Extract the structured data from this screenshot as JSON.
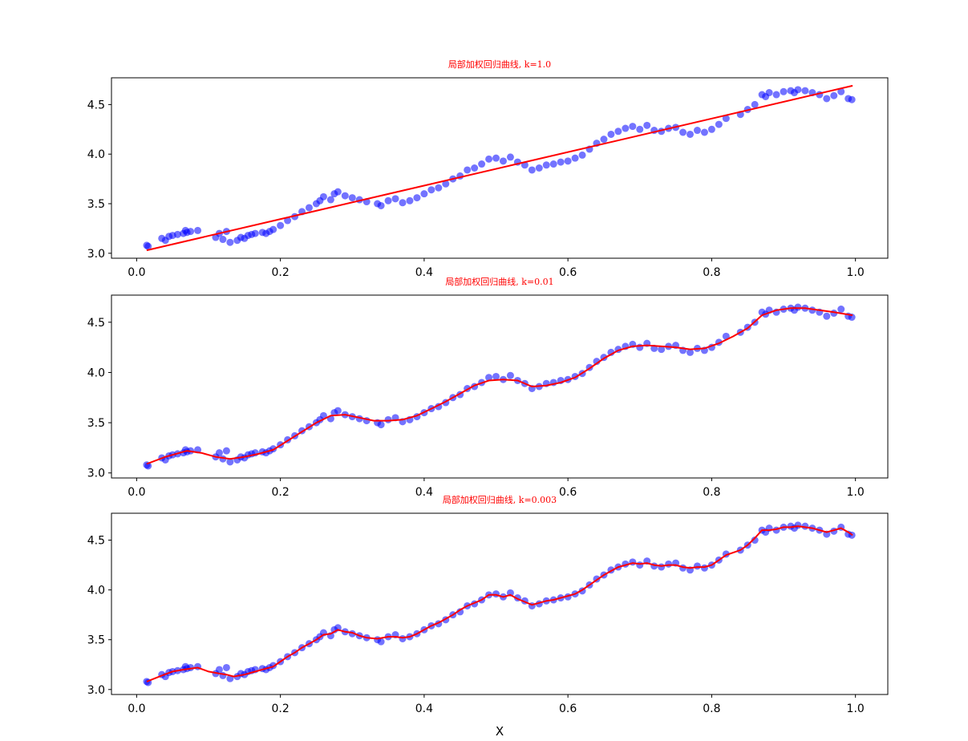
{
  "chart_data": [
    {
      "type": "scatter",
      "title": "局部加权回归曲线, k=1.0",
      "xlabel": "",
      "ylabel": "",
      "xlim": [
        -0.035,
        1.045
      ],
      "ylim": [
        2.95,
        4.77
      ],
      "xticks": [
        "0.0",
        "0.2",
        "0.4",
        "0.6",
        "0.8",
        "1.0"
      ],
      "yticks": [
        "3.0",
        "3.5",
        "4.0",
        "4.5"
      ],
      "grid": false,
      "series": [
        {
          "kind": "scatter",
          "color": "#0000ff",
          "x": [
            0.014,
            0.016,
            0.035,
            0.04,
            0.045,
            0.05,
            0.057,
            0.065,
            0.068,
            0.07,
            0.075,
            0.085,
            0.11,
            0.115,
            0.12,
            0.125,
            0.13,
            0.14,
            0.145,
            0.15,
            0.155,
            0.16,
            0.165,
            0.175,
            0.18,
            0.185,
            0.19,
            0.2,
            0.21,
            0.22,
            0.23,
            0.24,
            0.25,
            0.255,
            0.26,
            0.27,
            0.275,
            0.28,
            0.29,
            0.3,
            0.31,
            0.32,
            0.335,
            0.34,
            0.35,
            0.36,
            0.37,
            0.38,
            0.39,
            0.4,
            0.41,
            0.42,
            0.43,
            0.44,
            0.45,
            0.46,
            0.47,
            0.48,
            0.49,
            0.5,
            0.51,
            0.52,
            0.53,
            0.54,
            0.55,
            0.56,
            0.57,
            0.58,
            0.59,
            0.6,
            0.61,
            0.62,
            0.63,
            0.64,
            0.65,
            0.66,
            0.67,
            0.68,
            0.69,
            0.7,
            0.71,
            0.72,
            0.73,
            0.74,
            0.75,
            0.76,
            0.77,
            0.78,
            0.79,
            0.8,
            0.81,
            0.82,
            0.84,
            0.85,
            0.86,
            0.87,
            0.875,
            0.88,
            0.89,
            0.9,
            0.91,
            0.915,
            0.92,
            0.93,
            0.94,
            0.95,
            0.96,
            0.97,
            0.98,
            0.99,
            0.995
          ],
          "y": [
            3.08,
            3.07,
            3.15,
            3.13,
            3.17,
            3.18,
            3.19,
            3.2,
            3.23,
            3.21,
            3.22,
            3.23,
            3.16,
            3.2,
            3.14,
            3.22,
            3.11,
            3.13,
            3.16,
            3.15,
            3.18,
            3.19,
            3.2,
            3.21,
            3.2,
            3.22,
            3.24,
            3.28,
            3.33,
            3.37,
            3.42,
            3.46,
            3.5,
            3.53,
            3.57,
            3.54,
            3.6,
            3.62,
            3.58,
            3.56,
            3.54,
            3.52,
            3.5,
            3.48,
            3.53,
            3.55,
            3.51,
            3.53,
            3.56,
            3.6,
            3.64,
            3.66,
            3.7,
            3.75,
            3.78,
            3.84,
            3.86,
            3.9,
            3.95,
            3.96,
            3.93,
            3.97,
            3.92,
            3.89,
            3.84,
            3.86,
            3.89,
            3.9,
            3.92,
            3.93,
            3.96,
            3.99,
            4.05,
            4.11,
            4.15,
            4.2,
            4.23,
            4.26,
            4.28,
            4.25,
            4.29,
            4.24,
            4.23,
            4.26,
            4.27,
            4.22,
            4.2,
            4.24,
            4.22,
            4.25,
            4.3,
            4.36,
            4.4,
            4.45,
            4.5,
            4.6,
            4.58,
            4.62,
            4.6,
            4.63,
            4.64,
            4.62,
            4.65,
            4.64,
            4.62,
            4.6,
            4.56,
            4.59,
            4.63,
            4.56,
            4.55
          ]
        },
        {
          "kind": "line",
          "color": "#ff0000",
          "x": [
            0.014,
            0.996
          ],
          "y": [
            3.03,
            4.69
          ]
        }
      ]
    },
    {
      "type": "scatter",
      "title": "局部加权回归曲线, k=0.01",
      "xlabel": "",
      "ylabel": "",
      "xlim": [
        -0.035,
        1.045
      ],
      "ylim": [
        2.95,
        4.77
      ],
      "xticks": [
        "0.0",
        "0.2",
        "0.4",
        "0.6",
        "0.8",
        "1.0"
      ],
      "yticks": [
        "3.0",
        "3.5",
        "4.0",
        "4.5"
      ],
      "grid": false,
      "series": [
        {
          "kind": "scatter",
          "color": "#0000ff",
          "x": [
            0.014,
            0.016,
            0.035,
            0.04,
            0.045,
            0.05,
            0.057,
            0.065,
            0.068,
            0.07,
            0.075,
            0.085,
            0.11,
            0.115,
            0.12,
            0.125,
            0.13,
            0.14,
            0.145,
            0.15,
            0.155,
            0.16,
            0.165,
            0.175,
            0.18,
            0.185,
            0.19,
            0.2,
            0.21,
            0.22,
            0.23,
            0.24,
            0.25,
            0.255,
            0.26,
            0.27,
            0.275,
            0.28,
            0.29,
            0.3,
            0.31,
            0.32,
            0.335,
            0.34,
            0.35,
            0.36,
            0.37,
            0.38,
            0.39,
            0.4,
            0.41,
            0.42,
            0.43,
            0.44,
            0.45,
            0.46,
            0.47,
            0.48,
            0.49,
            0.5,
            0.51,
            0.52,
            0.53,
            0.54,
            0.55,
            0.56,
            0.57,
            0.58,
            0.59,
            0.6,
            0.61,
            0.62,
            0.63,
            0.64,
            0.65,
            0.66,
            0.67,
            0.68,
            0.69,
            0.7,
            0.71,
            0.72,
            0.73,
            0.74,
            0.75,
            0.76,
            0.77,
            0.78,
            0.79,
            0.8,
            0.81,
            0.82,
            0.84,
            0.85,
            0.86,
            0.87,
            0.875,
            0.88,
            0.89,
            0.9,
            0.91,
            0.915,
            0.92,
            0.93,
            0.94,
            0.95,
            0.96,
            0.97,
            0.98,
            0.99,
            0.995
          ],
          "y": [
            3.08,
            3.07,
            3.15,
            3.13,
            3.17,
            3.18,
            3.19,
            3.2,
            3.23,
            3.21,
            3.22,
            3.23,
            3.16,
            3.2,
            3.14,
            3.22,
            3.11,
            3.13,
            3.16,
            3.15,
            3.18,
            3.19,
            3.2,
            3.21,
            3.2,
            3.22,
            3.24,
            3.28,
            3.33,
            3.37,
            3.42,
            3.46,
            3.5,
            3.53,
            3.57,
            3.54,
            3.6,
            3.62,
            3.58,
            3.56,
            3.54,
            3.52,
            3.5,
            3.48,
            3.53,
            3.55,
            3.51,
            3.53,
            3.56,
            3.6,
            3.64,
            3.66,
            3.7,
            3.75,
            3.78,
            3.84,
            3.86,
            3.9,
            3.95,
            3.96,
            3.93,
            3.97,
            3.92,
            3.89,
            3.84,
            3.86,
            3.89,
            3.9,
            3.92,
            3.93,
            3.96,
            3.99,
            4.05,
            4.11,
            4.15,
            4.2,
            4.23,
            4.26,
            4.28,
            4.25,
            4.29,
            4.24,
            4.23,
            4.26,
            4.27,
            4.22,
            4.2,
            4.24,
            4.22,
            4.25,
            4.3,
            4.36,
            4.4,
            4.45,
            4.5,
            4.6,
            4.58,
            4.62,
            4.6,
            4.63,
            4.64,
            4.62,
            4.65,
            4.64,
            4.62,
            4.6,
            4.56,
            4.59,
            4.63,
            4.56,
            4.55
          ]
        },
        {
          "kind": "line",
          "color": "#ff0000",
          "x": [
            0.014,
            0.04,
            0.07,
            0.09,
            0.11,
            0.13,
            0.15,
            0.17,
            0.19,
            0.21,
            0.23,
            0.25,
            0.27,
            0.29,
            0.31,
            0.33,
            0.35,
            0.37,
            0.39,
            0.41,
            0.43,
            0.45,
            0.47,
            0.49,
            0.51,
            0.53,
            0.55,
            0.57,
            0.59,
            0.61,
            0.63,
            0.65,
            0.67,
            0.69,
            0.71,
            0.73,
            0.75,
            0.77,
            0.79,
            0.81,
            0.83,
            0.85,
            0.87,
            0.89,
            0.91,
            0.93,
            0.95,
            0.97,
            0.996
          ],
          "y": [
            3.09,
            3.16,
            3.22,
            3.2,
            3.16,
            3.14,
            3.16,
            3.19,
            3.23,
            3.32,
            3.41,
            3.5,
            3.57,
            3.58,
            3.55,
            3.52,
            3.52,
            3.53,
            3.57,
            3.64,
            3.71,
            3.79,
            3.87,
            3.92,
            3.93,
            3.92,
            3.86,
            3.87,
            3.9,
            3.95,
            4.04,
            4.14,
            4.22,
            4.26,
            4.27,
            4.26,
            4.25,
            4.23,
            4.24,
            4.29,
            4.36,
            4.44,
            4.57,
            4.62,
            4.64,
            4.64,
            4.62,
            4.6,
            4.57
          ]
        }
      ]
    },
    {
      "type": "scatter",
      "title": "局部加权回归曲线, k=0.003",
      "xlabel": "X",
      "ylabel": "",
      "xlim": [
        -0.035,
        1.045
      ],
      "ylim": [
        2.95,
        4.77
      ],
      "xticks": [
        "0.0",
        "0.2",
        "0.4",
        "0.6",
        "0.8",
        "1.0"
      ],
      "yticks": [
        "3.0",
        "3.5",
        "4.0",
        "4.5"
      ],
      "grid": false,
      "series": [
        {
          "kind": "scatter",
          "color": "#0000ff",
          "x": [
            0.014,
            0.016,
            0.035,
            0.04,
            0.045,
            0.05,
            0.057,
            0.065,
            0.068,
            0.07,
            0.075,
            0.085,
            0.11,
            0.115,
            0.12,
            0.125,
            0.13,
            0.14,
            0.145,
            0.15,
            0.155,
            0.16,
            0.165,
            0.175,
            0.18,
            0.185,
            0.19,
            0.2,
            0.21,
            0.22,
            0.23,
            0.24,
            0.25,
            0.255,
            0.26,
            0.27,
            0.275,
            0.28,
            0.29,
            0.3,
            0.31,
            0.32,
            0.335,
            0.34,
            0.35,
            0.36,
            0.37,
            0.38,
            0.39,
            0.4,
            0.41,
            0.42,
            0.43,
            0.44,
            0.45,
            0.46,
            0.47,
            0.48,
            0.49,
            0.5,
            0.51,
            0.52,
            0.53,
            0.54,
            0.55,
            0.56,
            0.57,
            0.58,
            0.59,
            0.6,
            0.61,
            0.62,
            0.63,
            0.64,
            0.65,
            0.66,
            0.67,
            0.68,
            0.69,
            0.7,
            0.71,
            0.72,
            0.73,
            0.74,
            0.75,
            0.76,
            0.77,
            0.78,
            0.79,
            0.8,
            0.81,
            0.82,
            0.84,
            0.85,
            0.86,
            0.87,
            0.875,
            0.88,
            0.89,
            0.9,
            0.91,
            0.915,
            0.92,
            0.93,
            0.94,
            0.95,
            0.96,
            0.97,
            0.98,
            0.99,
            0.995
          ],
          "y": [
            3.08,
            3.07,
            3.15,
            3.13,
            3.17,
            3.18,
            3.19,
            3.2,
            3.23,
            3.21,
            3.22,
            3.23,
            3.16,
            3.2,
            3.14,
            3.22,
            3.11,
            3.13,
            3.16,
            3.15,
            3.18,
            3.19,
            3.2,
            3.21,
            3.2,
            3.22,
            3.24,
            3.28,
            3.33,
            3.37,
            3.42,
            3.46,
            3.5,
            3.53,
            3.57,
            3.54,
            3.6,
            3.62,
            3.58,
            3.56,
            3.54,
            3.52,
            3.5,
            3.48,
            3.53,
            3.55,
            3.51,
            3.53,
            3.56,
            3.6,
            3.64,
            3.66,
            3.7,
            3.75,
            3.78,
            3.84,
            3.86,
            3.9,
            3.95,
            3.96,
            3.93,
            3.97,
            3.92,
            3.89,
            3.84,
            3.86,
            3.89,
            3.9,
            3.92,
            3.93,
            3.96,
            3.99,
            4.05,
            4.11,
            4.15,
            4.2,
            4.23,
            4.26,
            4.28,
            4.25,
            4.29,
            4.24,
            4.23,
            4.26,
            4.27,
            4.22,
            4.2,
            4.24,
            4.22,
            4.25,
            4.3,
            4.36,
            4.4,
            4.45,
            4.5,
            4.6,
            4.58,
            4.62,
            4.6,
            4.63,
            4.64,
            4.62,
            4.65,
            4.64,
            4.62,
            4.6,
            4.56,
            4.59,
            4.63,
            4.56,
            4.55
          ]
        },
        {
          "kind": "line",
          "color": "#ff0000",
          "x": [
            0.014,
            0.035,
            0.05,
            0.065,
            0.075,
            0.085,
            0.1,
            0.115,
            0.125,
            0.135,
            0.15,
            0.165,
            0.18,
            0.19,
            0.2,
            0.21,
            0.22,
            0.23,
            0.24,
            0.25,
            0.26,
            0.27,
            0.28,
            0.29,
            0.3,
            0.31,
            0.32,
            0.335,
            0.35,
            0.36,
            0.37,
            0.38,
            0.39,
            0.4,
            0.41,
            0.42,
            0.43,
            0.44,
            0.45,
            0.46,
            0.47,
            0.48,
            0.49,
            0.5,
            0.51,
            0.52,
            0.53,
            0.54,
            0.55,
            0.56,
            0.57,
            0.58,
            0.59,
            0.6,
            0.61,
            0.62,
            0.63,
            0.64,
            0.65,
            0.66,
            0.67,
            0.68,
            0.69,
            0.7,
            0.71,
            0.72,
            0.73,
            0.74,
            0.75,
            0.76,
            0.77,
            0.78,
            0.79,
            0.8,
            0.81,
            0.82,
            0.84,
            0.85,
            0.86,
            0.87,
            0.88,
            0.89,
            0.9,
            0.91,
            0.92,
            0.93,
            0.94,
            0.95,
            0.96,
            0.97,
            0.98,
            0.99,
            0.996
          ],
          "y": [
            3.08,
            3.14,
            3.18,
            3.2,
            3.21,
            3.22,
            3.18,
            3.16,
            3.15,
            3.13,
            3.15,
            3.18,
            3.21,
            3.23,
            3.28,
            3.33,
            3.37,
            3.42,
            3.46,
            3.5,
            3.55,
            3.56,
            3.6,
            3.58,
            3.57,
            3.54,
            3.52,
            3.51,
            3.53,
            3.53,
            3.52,
            3.53,
            3.56,
            3.6,
            3.64,
            3.67,
            3.71,
            3.75,
            3.8,
            3.84,
            3.87,
            3.9,
            3.95,
            3.95,
            3.93,
            3.95,
            3.91,
            3.88,
            3.85,
            3.87,
            3.89,
            3.9,
            3.92,
            3.94,
            3.96,
            4.0,
            4.05,
            4.1,
            4.15,
            4.19,
            4.23,
            4.25,
            4.27,
            4.26,
            4.27,
            4.25,
            4.24,
            4.25,
            4.25,
            4.23,
            4.22,
            4.23,
            4.23,
            4.25,
            4.3,
            4.35,
            4.4,
            4.45,
            4.52,
            4.6,
            4.6,
            4.61,
            4.63,
            4.63,
            4.64,
            4.63,
            4.62,
            4.6,
            4.58,
            4.6,
            4.62,
            4.58,
            4.55
          ]
        }
      ]
    }
  ]
}
